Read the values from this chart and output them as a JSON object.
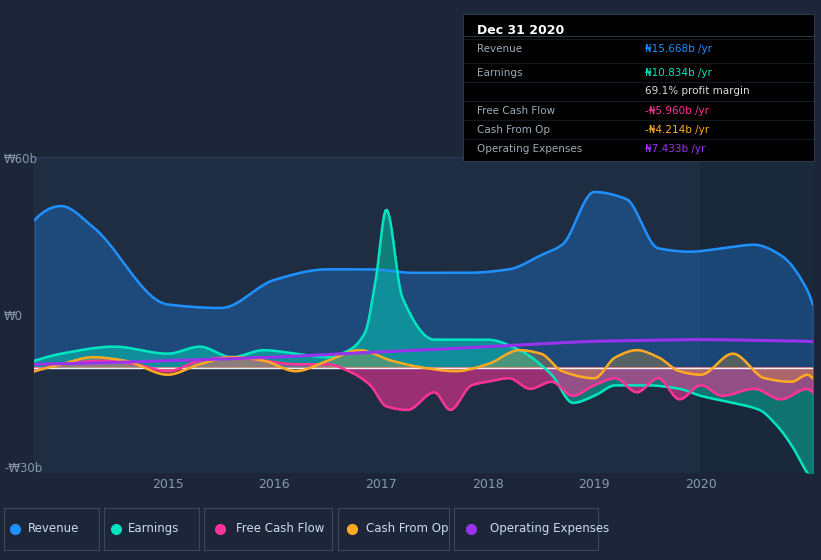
{
  "bg_color": "#1c2638",
  "plot_bg_color": "#1e2d42",
  "ylim": [
    -30,
    60
  ],
  "colors": {
    "revenue": "#1e90ff",
    "earnings": "#00e5c0",
    "free_cash_flow": "#ff3399",
    "cash_from_op": "#ffaa22",
    "operating_expenses": "#9933ee"
  },
  "tooltip": {
    "title": "Dec 31 2020",
    "revenue_val": "₦15.668b /yr",
    "earnings_val": "₦10.834b /yr",
    "profit_margin": "69.1% profit margin",
    "fcf_val": "-₦5.960b /yr",
    "cashop_val": "-₦4.214b /yr",
    "opex_val": "₦7.433b /yr"
  }
}
